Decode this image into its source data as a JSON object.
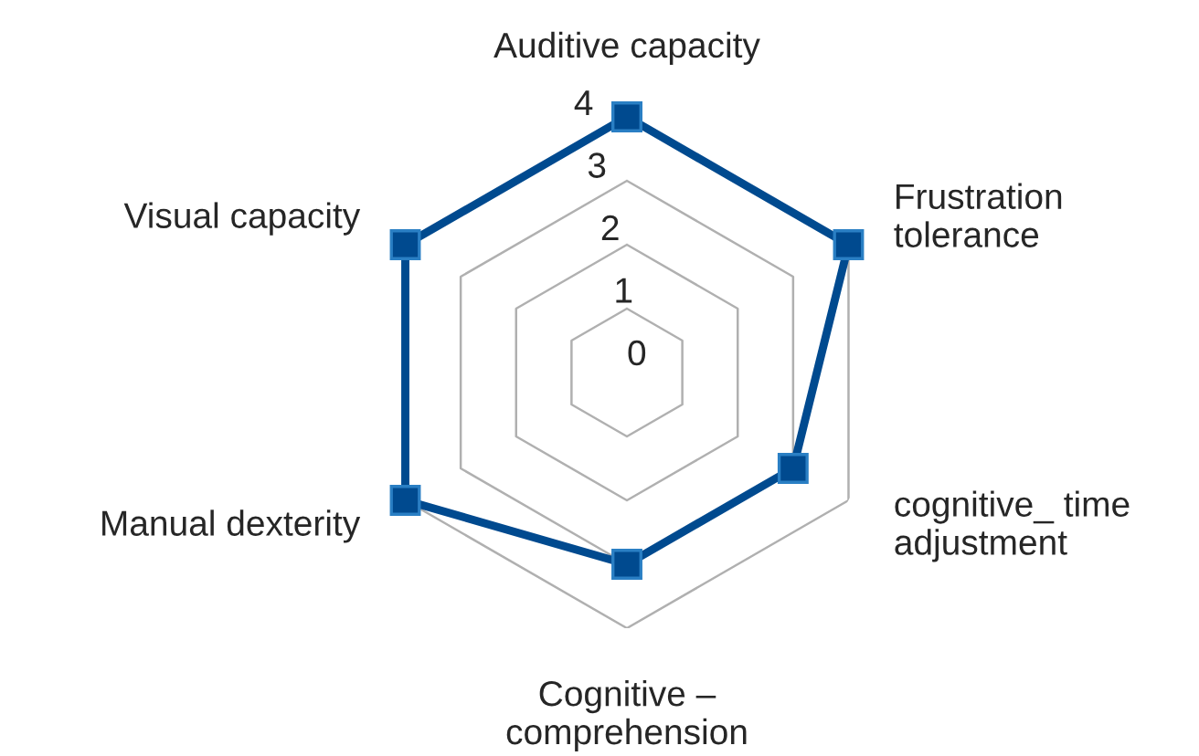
{
  "chart_data": {
    "type": "radar",
    "categories": [
      "Auditive capacity",
      "Frustration\ntolerance",
      "cognitive_ time\nadjustment",
      "Cognitive –\ncomprehension",
      "Manual dexterity",
      "Visual capacity"
    ],
    "series": [
      {
        "color": "#004a8f",
        "values": [
          4,
          4,
          3,
          3,
          4,
          4
        ]
      }
    ],
    "ylim": [
      0,
      4
    ],
    "yticks": [
      0,
      1,
      2,
      3,
      4
    ],
    "grid": true,
    "marker": "square",
    "line_style": "solid"
  }
}
